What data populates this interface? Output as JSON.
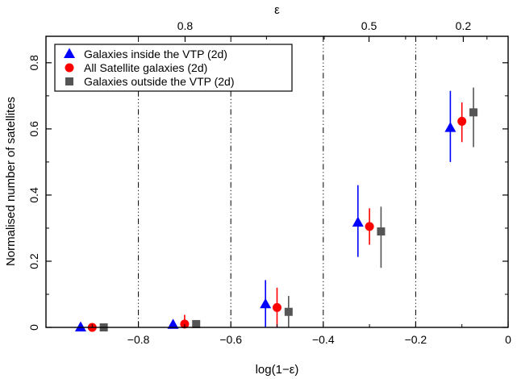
{
  "chart_data": {
    "type": "scatter",
    "xlabel": "log(1−ε)",
    "ylabel": "Normalised number of satellites",
    "top_axis_label": "ε",
    "xlim": [
      -1.0,
      0.0
    ],
    "ylim": [
      0.0,
      0.88
    ],
    "x_ticks": [
      -0.8,
      -0.6,
      -0.4,
      -0.2,
      0
    ],
    "x_tick_labels": [
      "−0.8",
      "−0.6",
      "−0.4",
      "−0.2",
      "0"
    ],
    "y_ticks": [
      0,
      0.2,
      0.4,
      0.6,
      0.8
    ],
    "y_tick_labels": [
      "0",
      "0.2",
      "0.4",
      "0.6",
      "0.8"
    ],
    "top_ticks": [
      {
        "label": "0.8",
        "x": -0.699
      },
      {
        "label": "0.5",
        "x": -0.301
      },
      {
        "label": "0.2",
        "x": -0.097
      }
    ],
    "vertical_lines": [
      -0.8,
      -0.6,
      -0.4,
      -0.2
    ],
    "legend_position": "top-left",
    "series": [
      {
        "name": "Galaxies inside the VTP (2d)",
        "marker": "triangle",
        "color": "#0000ff",
        "points": [
          {
            "x": -0.925,
            "y": 0.0,
            "ylo": 0.0,
            "yhi": 0.0
          },
          {
            "x": -0.725,
            "y": 0.008,
            "ylo": 0.008,
            "yhi": 0.008
          },
          {
            "x": -0.525,
            "y": 0.07,
            "ylo": 0.0,
            "yhi": 0.143
          },
          {
            "x": -0.325,
            "y": 0.317,
            "ylo": 0.213,
            "yhi": 0.43
          },
          {
            "x": -0.125,
            "y": 0.603,
            "ylo": 0.5,
            "yhi": 0.715
          }
        ]
      },
      {
        "name": "All Satellite galaxies (2d)",
        "marker": "circle",
        "color": "#ff0000",
        "points": [
          {
            "x": -0.9,
            "y": 0.0,
            "ylo": 0.0,
            "yhi": 0.0
          },
          {
            "x": -0.7,
            "y": 0.01,
            "ylo": 0.0,
            "yhi": 0.038
          },
          {
            "x": -0.5,
            "y": 0.06,
            "ylo": 0.0,
            "yhi": 0.12
          },
          {
            "x": -0.3,
            "y": 0.305,
            "ylo": 0.25,
            "yhi": 0.36
          },
          {
            "x": -0.1,
            "y": 0.623,
            "ylo": 0.56,
            "yhi": 0.68
          }
        ]
      },
      {
        "name": "Galaxies outside the VTP (2d)",
        "marker": "square",
        "color": "#555555",
        "points": [
          {
            "x": -0.875,
            "y": 0.0,
            "ylo": 0.0,
            "yhi": 0.0
          },
          {
            "x": -0.675,
            "y": 0.01,
            "ylo": 0.01,
            "yhi": 0.01
          },
          {
            "x": -0.475,
            "y": 0.047,
            "ylo": 0.0,
            "yhi": 0.095
          },
          {
            "x": -0.275,
            "y": 0.29,
            "ylo": 0.18,
            "yhi": 0.365
          },
          {
            "x": -0.075,
            "y": 0.65,
            "ylo": 0.545,
            "yhi": 0.725
          }
        ]
      }
    ]
  }
}
